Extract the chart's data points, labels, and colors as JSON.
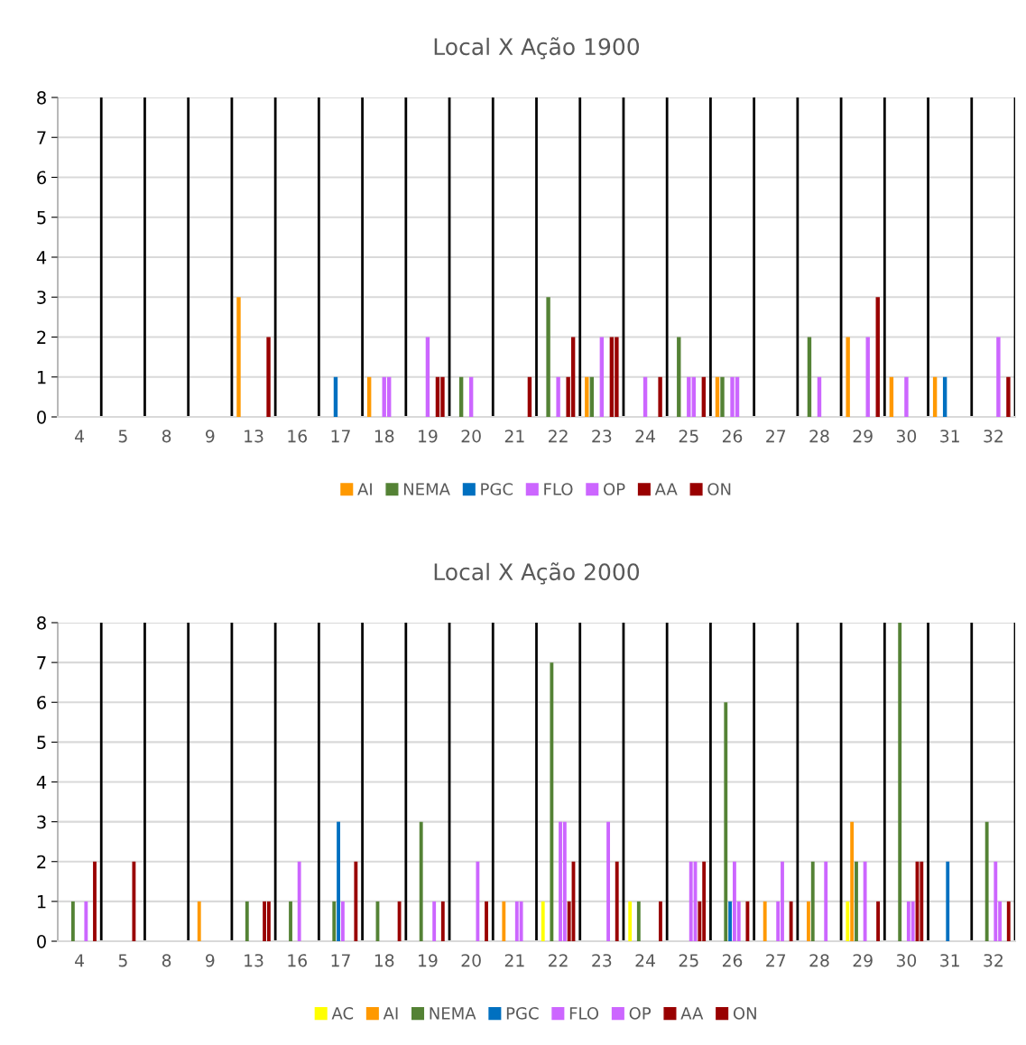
{
  "chart_data": [
    {
      "type": "bar",
      "title": "Local X Ação 1900",
      "categories": [
        "4",
        "5",
        "8",
        "9",
        "13",
        "16",
        "17",
        "18",
        "19",
        "20",
        "21",
        "22",
        "23",
        "24",
        "25",
        "26",
        "27",
        "28",
        "29",
        "30",
        "31",
        "32"
      ],
      "series": [
        {
          "name": "AI",
          "color": "#ff9900",
          "values": [
            0,
            0,
            0,
            0,
            3,
            0,
            0,
            1,
            0,
            0,
            0,
            0,
            1,
            0,
            0,
            1,
            0,
            0,
            2,
            1,
            1,
            0
          ]
        },
        {
          "name": "NEMA",
          "color": "#548235",
          "values": [
            0,
            0,
            0,
            0,
            0,
            0,
            0,
            0,
            0,
            1,
            0,
            3,
            1,
            0,
            2,
            1,
            0,
            2,
            0,
            0,
            0,
            0
          ]
        },
        {
          "name": "PGC",
          "color": "#0070c0",
          "values": [
            0,
            0,
            0,
            0,
            0,
            0,
            1,
            0,
            0,
            0,
            0,
            0,
            0,
            0,
            0,
            0,
            0,
            0,
            0,
            0,
            1,
            0
          ]
        },
        {
          "name": "FLO",
          "color": "#cc66ff",
          "values": [
            0,
            0,
            0,
            0,
            0,
            0,
            0,
            1,
            2,
            1,
            0,
            1,
            2,
            1,
            1,
            1,
            0,
            1,
            0,
            1,
            0,
            0
          ]
        },
        {
          "name": "OP",
          "color": "#cc66ff",
          "values": [
            0,
            0,
            0,
            0,
            0,
            0,
            0,
            1,
            0,
            0,
            0,
            0,
            0,
            0,
            1,
            1,
            0,
            0,
            2,
            0,
            0,
            2
          ]
        },
        {
          "name": "AA",
          "color": "#990000",
          "values": [
            0,
            0,
            0,
            0,
            0,
            0,
            0,
            0,
            1,
            0,
            0,
            1,
            2,
            0,
            0,
            0,
            0,
            0,
            0,
            0,
            0,
            0
          ]
        },
        {
          "name": "ON",
          "color": "#990000",
          "values": [
            0,
            0,
            0,
            0,
            2,
            0,
            0,
            0,
            1,
            0,
            1,
            2,
            2,
            1,
            1,
            0,
            0,
            0,
            3,
            0,
            0,
            1
          ]
        }
      ],
      "ylim": [
        0,
        8
      ],
      "yticks": [
        0,
        1,
        2,
        3,
        4,
        5,
        6,
        7,
        8
      ],
      "grid": true,
      "legend": "bottom"
    },
    {
      "type": "bar",
      "title": "Local X Ação 2000",
      "categories": [
        "4",
        "5",
        "8",
        "9",
        "13",
        "16",
        "17",
        "18",
        "19",
        "20",
        "21",
        "22",
        "23",
        "24",
        "25",
        "26",
        "27",
        "28",
        "29",
        "30",
        "31",
        "32"
      ],
      "series": [
        {
          "name": "AC",
          "color": "#ffff00",
          "values": [
            0,
            0,
            0,
            0,
            0,
            0,
            0,
            0,
            0,
            0,
            0,
            1,
            0,
            1,
            0,
            0,
            0,
            0,
            1,
            0,
            0,
            0
          ]
        },
        {
          "name": "AI",
          "color": "#ff9900",
          "values": [
            0,
            0,
            0,
            1,
            0,
            0,
            0,
            0,
            0,
            0,
            1,
            0,
            0,
            0,
            0,
            0,
            1,
            1,
            3,
            0,
            0,
            0
          ]
        },
        {
          "name": "NEMA",
          "color": "#548235",
          "values": [
            1,
            0,
            0,
            0,
            1,
            1,
            1,
            1,
            3,
            0,
            0,
            7,
            0,
            1,
            0,
            6,
            0,
            2,
            2,
            8,
            0,
            3
          ]
        },
        {
          "name": "PGC",
          "color": "#0070c0",
          "values": [
            0,
            0,
            0,
            0,
            0,
            0,
            3,
            0,
            0,
            0,
            0,
            0,
            0,
            0,
            0,
            1,
            0,
            0,
            0,
            0,
            2,
            0
          ]
        },
        {
          "name": "FLO",
          "color": "#cc66ff",
          "values": [
            0,
            0,
            0,
            0,
            0,
            2,
            1,
            0,
            0,
            0,
            1,
            3,
            0,
            0,
            2,
            2,
            1,
            0,
            2,
            1,
            0,
            2
          ]
        },
        {
          "name": "OP",
          "color": "#cc66ff",
          "values": [
            1,
            0,
            0,
            0,
            0,
            0,
            0,
            0,
            1,
            2,
            1,
            3,
            3,
            0,
            2,
            1,
            2,
            2,
            0,
            1,
            0,
            1
          ]
        },
        {
          "name": "AA",
          "color": "#990000",
          "values": [
            0,
            2,
            0,
            0,
            1,
            0,
            0,
            0,
            0,
            0,
            0,
            1,
            0,
            0,
            1,
            0,
            0,
            0,
            0,
            2,
            0,
            0
          ]
        },
        {
          "name": "ON",
          "color": "#990000",
          "values": [
            2,
            0,
            0,
            0,
            1,
            0,
            2,
            1,
            1,
            1,
            0,
            2,
            2,
            1,
            2,
            1,
            1,
            0,
            1,
            2,
            0,
            1
          ]
        }
      ],
      "ylim": [
        0,
        8
      ],
      "yticks": [
        0,
        1,
        2,
        3,
        4,
        5,
        6,
        7,
        8
      ],
      "grid": true,
      "legend": "bottom"
    }
  ]
}
